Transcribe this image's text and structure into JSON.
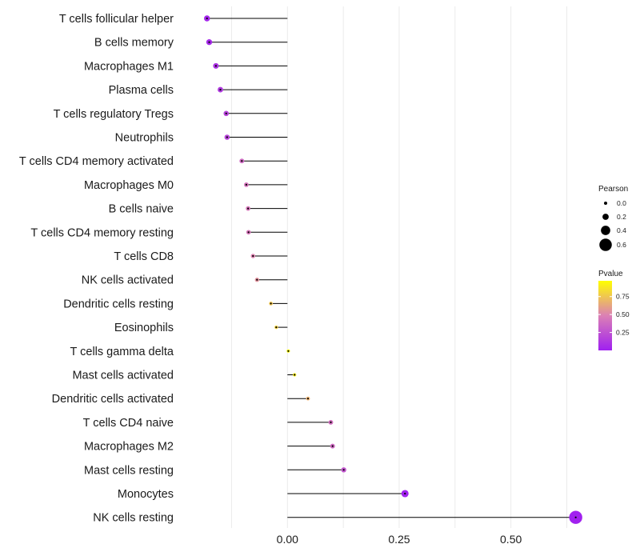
{
  "chart_data": {
    "type": "lollipop",
    "title": "",
    "xlabel": "",
    "ylabel": "",
    "xlim": [
      -0.235,
      0.685
    ],
    "x_ticks": [
      0.0,
      0.25,
      0.5
    ],
    "x_tick_labels": [
      "0.00",
      "0.25",
      "0.50"
    ],
    "categories": [
      "T cells follicular helper",
      "B cells memory",
      "Macrophages M1",
      "Plasma cells",
      "T cells regulatory  Tregs",
      "Neutrophils",
      "T cells CD4 memory activated",
      "Macrophages M0",
      "B cells naive",
      "T cells CD4 memory resting",
      "T cells CD8",
      "NK cells activated",
      "Dendritic cells resting",
      "Eosinophils",
      "T cells gamma delta",
      "Mast cells activated",
      "Dendritic cells activated",
      "T cells CD4 naive",
      "Macrophages M2",
      "Mast cells resting",
      "Monocytes",
      "NK cells resting"
    ],
    "values": [
      -0.18,
      -0.175,
      -0.16,
      -0.15,
      -0.137,
      -0.135,
      -0.102,
      -0.092,
      -0.088,
      -0.087,
      -0.077,
      -0.068,
      -0.037,
      -0.025,
      0.002,
      0.016,
      0.046,
      0.097,
      0.101,
      0.126,
      0.263,
      0.645
    ],
    "pvalues": [
      0.03,
      0.05,
      0.1,
      0.13,
      0.18,
      0.19,
      0.38,
      0.43,
      0.44,
      0.44,
      0.5,
      0.56,
      0.78,
      0.82,
      0.99,
      0.92,
      0.7,
      0.4,
      0.38,
      0.28,
      0.01,
      0.005
    ],
    "size_legend": {
      "title": "Pearson",
      "values": [
        0.0,
        0.2,
        0.4,
        0.6
      ],
      "labels": [
        "0.0",
        "0.2",
        "0.4",
        "0.6"
      ]
    },
    "color_legend": {
      "title": "Pvalue",
      "range": [
        0.0,
        0.97
      ],
      "ticks": [
        0.25,
        0.5,
        0.75
      ],
      "tick_labels": [
        "0.25",
        "0.50",
        "0.75"
      ],
      "low_color": "#a020f0",
      "high_color": "#ffff00"
    },
    "grid": true
  }
}
